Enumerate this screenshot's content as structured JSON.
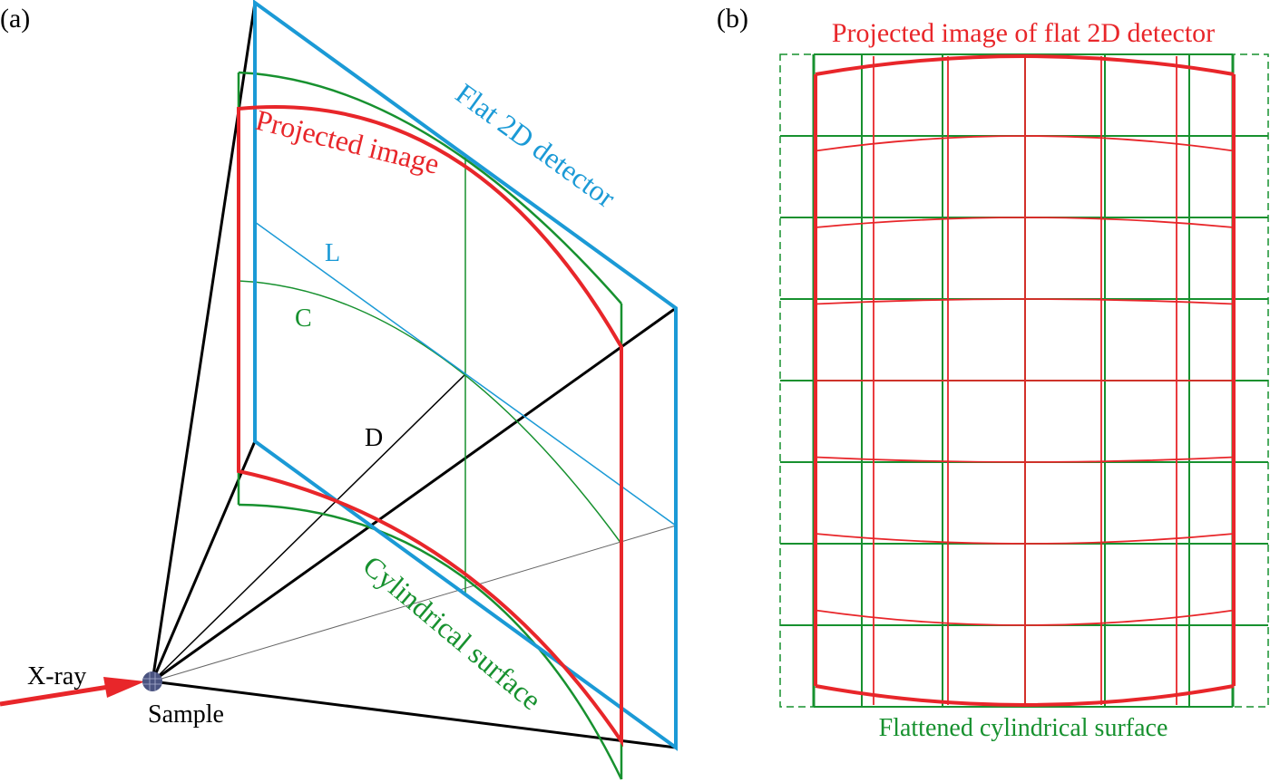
{
  "panel_a": {
    "label": "(a)",
    "projected_image_label": "Projected image",
    "flat_detector_label": "Flat 2D detector",
    "L_label": "L",
    "C_label": "C",
    "D_label": "D",
    "cylindrical_label": "Cylindrical surface",
    "xray_label": "X-ray",
    "sample_label": "Sample"
  },
  "panel_b": {
    "label": "(b)",
    "title": "Projected image of flat 2D detector",
    "caption": "Flattened cylindrical surface"
  },
  "colors": {
    "detector": "#1b9ad6",
    "projected": "#e8262a",
    "cylinder": "#17912f",
    "rays": "#000000",
    "sample": "#4a5380"
  }
}
